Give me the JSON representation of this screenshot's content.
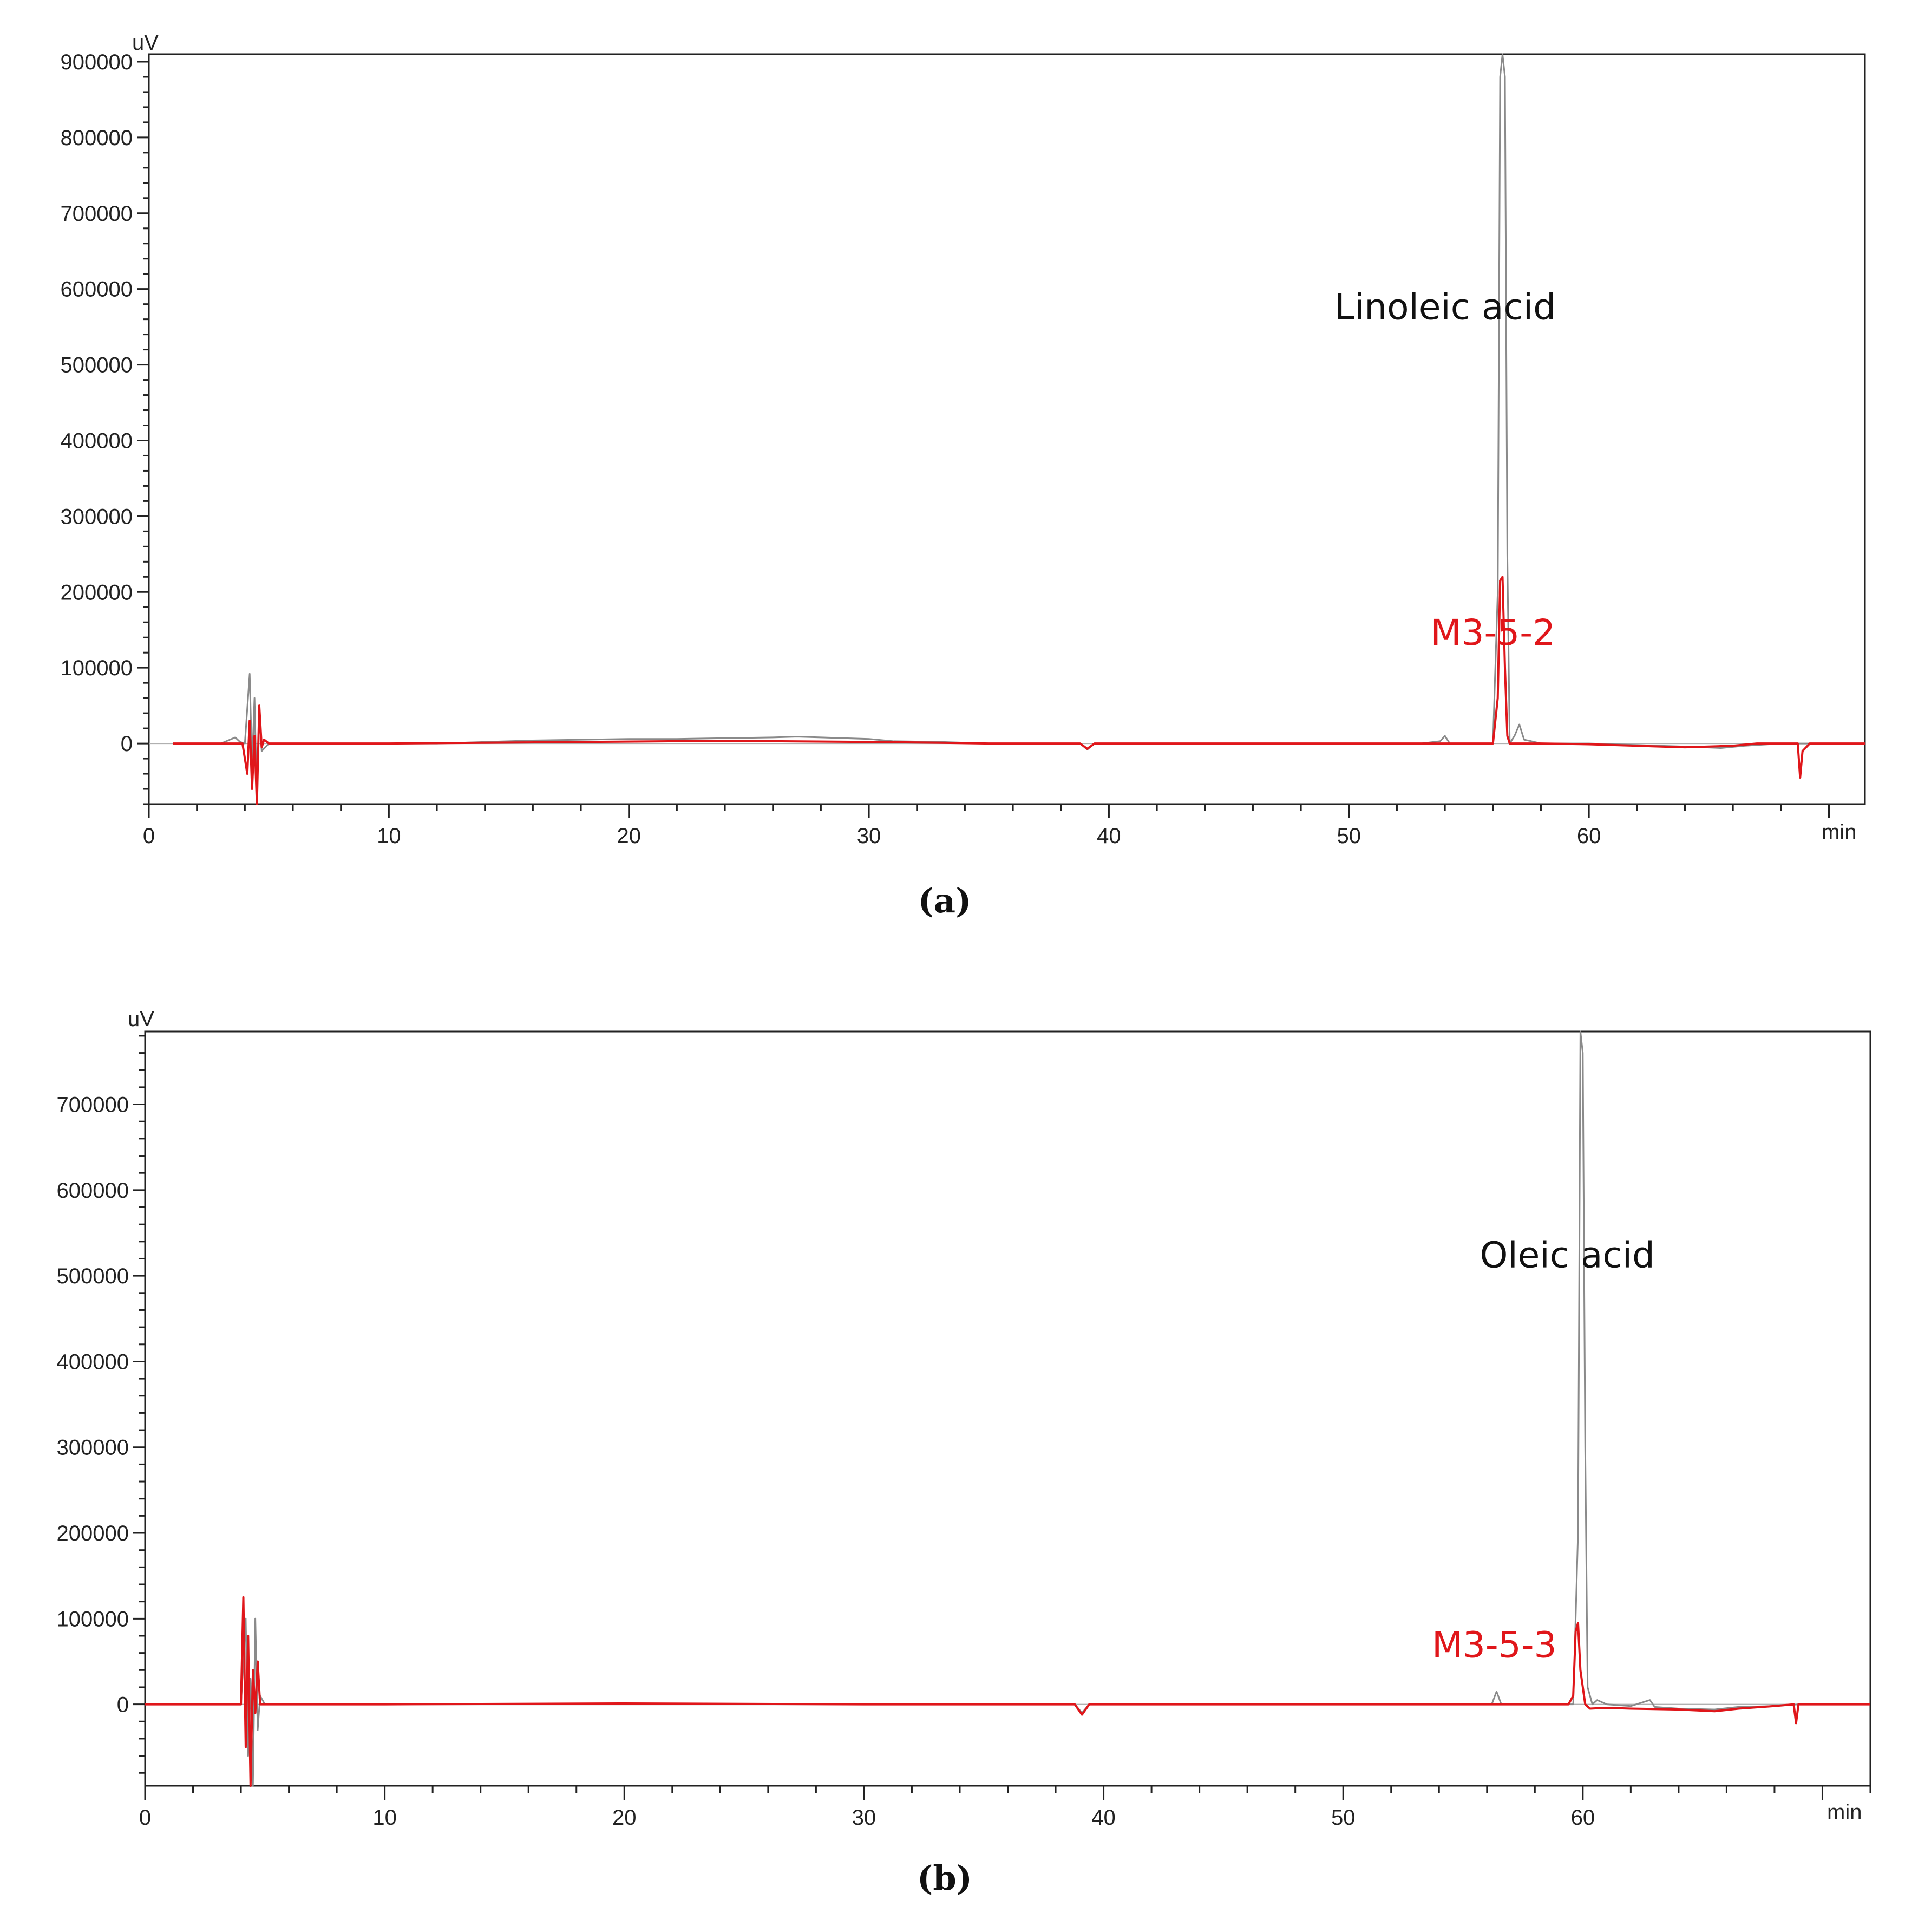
{
  "colors": {
    "standard": "#8a8a8a",
    "sample": "#e0161a",
    "axis": "#222222"
  },
  "chart_data": [
    {
      "type": "line",
      "panel_label": "(a)",
      "x_unit": "min",
      "y_unit": "uV",
      "xlim": [
        0,
        71.5
      ],
      "ylim": [
        -80000,
        910000
      ],
      "x_ticks": [
        0,
        10,
        20,
        30,
        40,
        50,
        60
      ],
      "x_tick_labels": [
        "0",
        "10",
        "20",
        "30",
        "40",
        "50",
        "60"
      ],
      "y_ticks": [
        0,
        100000,
        200000,
        300000,
        400000,
        500000,
        600000,
        700000,
        800000,
        900000
      ],
      "y_tick_labels": [
        "0",
        "100000",
        "200000",
        "300000",
        "400000",
        "500000",
        "600000",
        "700000",
        "800000",
        "900000"
      ],
      "annotations": [
        {
          "text": "Linoleic acid",
          "x": 49.4,
          "y": 560000,
          "color": "#111111"
        },
        {
          "text": "M3-5-2",
          "x": 53.4,
          "y": 130000,
          "color": "#e0161a"
        }
      ],
      "series": [
        {
          "color": "#8a8a8a",
          "x": [
            1,
            3,
            3.6,
            3.8,
            4.0,
            4.2,
            4.3,
            4.4,
            4.5,
            4.6,
            4.7,
            5.0,
            6,
            8,
            10,
            12,
            14,
            16,
            18,
            20,
            22,
            24,
            26,
            27,
            28,
            30,
            31,
            33,
            35,
            37,
            38.8,
            39.1,
            39.4,
            40,
            45,
            50,
            53,
            53.8,
            54.0,
            54.2,
            55,
            56.0,
            56.2,
            56.3,
            56.4,
            56.5,
            56.6,
            56.7,
            56.9,
            57.1,
            57.3,
            57.6,
            58,
            59,
            60,
            62,
            64,
            65.5,
            66.5,
            67,
            68,
            69,
            70,
            71.5
          ],
          "y": [
            0,
            0,
            8000,
            2000,
            0,
            92000,
            -30000,
            60000,
            -70000,
            40000,
            -10000,
            0,
            0,
            0,
            0,
            0,
            2000,
            4000,
            5000,
            6000,
            6000,
            7000,
            8000,
            9000,
            8000,
            6000,
            3000,
            2000,
            0,
            0,
            0,
            -8000,
            0,
            0,
            0,
            0,
            0,
            3000,
            10000,
            0,
            0,
            0,
            200000,
            880000,
            910000,
            880000,
            250000,
            0,
            10000,
            25000,
            5000,
            3000,
            0,
            0,
            0,
            -2000,
            -4000,
            -6000,
            -3000,
            -2000,
            0,
            0,
            0,
            0
          ]
        },
        {
          "color": "#e0161a",
          "x": [
            1,
            3,
            3.9,
            4.1,
            4.2,
            4.3,
            4.4,
            4.5,
            4.6,
            4.7,
            4.8,
            5.0,
            6,
            10,
            14,
            18,
            22,
            26,
            30,
            33,
            35,
            38.8,
            39.1,
            39.4,
            40,
            50,
            56.0,
            56.2,
            56.3,
            56.4,
            56.5,
            56.6,
            56.7,
            57,
            58,
            60,
            62,
            64,
            66,
            67,
            68,
            68.7,
            68.8,
            68.9,
            69.2,
            70,
            71.5
          ],
          "y": [
            0,
            0,
            0,
            -40000,
            30000,
            -60000,
            10000,
            -80000,
            50000,
            -5000,
            5000,
            0,
            0,
            0,
            1000,
            2000,
            3000,
            3000,
            2000,
            1000,
            0,
            0,
            -7000,
            0,
            0,
            0,
            0,
            60000,
            215000,
            220000,
            100000,
            10000,
            0,
            0,
            0,
            -1000,
            -3000,
            -5000,
            -3000,
            0,
            0,
            0,
            -45000,
            -10000,
            0,
            0,
            0
          ]
        }
      ]
    },
    {
      "type": "line",
      "panel_label": "(b)",
      "x_unit": "min",
      "y_unit": "uV",
      "xlim": [
        0,
        72
      ],
      "ylim": [
        -95000,
        785000
      ],
      "x_ticks": [
        0,
        10,
        20,
        30,
        40,
        50,
        60
      ],
      "x_tick_labels": [
        "0",
        "10",
        "20",
        "30",
        "40",
        "50",
        "60"
      ],
      "y_ticks": [
        0,
        100000,
        200000,
        300000,
        400000,
        500000,
        600000,
        700000
      ],
      "y_tick_labels": [
        "0",
        "100000",
        "200000",
        "300000",
        "400000",
        "500000",
        "600000",
        "700000"
      ],
      "annotations": [
        {
          "text": "Oleic acid",
          "x": 55.7,
          "y": 510000,
          "color": "#111111"
        },
        {
          "text": "M3-5-3",
          "x": 53.7,
          "y": 55000,
          "color": "#e0161a"
        }
      ],
      "series": [
        {
          "color": "#8a8a8a",
          "x": [
            0,
            3,
            4.0,
            4.2,
            4.3,
            4.4,
            4.5,
            4.6,
            4.7,
            4.8,
            5.0,
            6,
            10,
            20,
            30,
            38.8,
            39.1,
            39.4,
            40,
            50,
            55,
            56.2,
            56.4,
            56.6,
            57,
            59,
            59.6,
            59.8,
            59.9,
            60.0,
            60.1,
            60.2,
            60.4,
            60.6,
            61,
            62,
            62.8,
            63,
            64,
            65.5,
            66.5,
            68,
            69,
            70,
            72
          ],
          "y": [
            0,
            0,
            0,
            100000,
            -60000,
            30000,
            -95000,
            100000,
            -30000,
            10000,
            0,
            0,
            0,
            0,
            0,
            0,
            -10000,
            0,
            0,
            0,
            0,
            0,
            15000,
            0,
            0,
            0,
            0,
            200000,
            785000,
            760000,
            300000,
            20000,
            0,
            5000,
            0,
            -2000,
            5000,
            -3000,
            -5000,
            -6000,
            -3000,
            -2000,
            0,
            0,
            0
          ]
        },
        {
          "color": "#e0161a",
          "x": [
            0,
            3,
            4.0,
            4.1,
            4.2,
            4.3,
            4.4,
            4.5,
            4.6,
            4.7,
            4.8,
            5.0,
            6,
            10,
            20,
            30,
            38.8,
            39.1,
            39.4,
            40,
            50,
            59.4,
            59.6,
            59.7,
            59.8,
            59.9,
            60.1,
            60.3,
            61,
            62,
            64,
            65.5,
            66.5,
            68,
            68.8,
            68.9,
            69.0,
            70,
            72
          ],
          "y": [
            0,
            0,
            0,
            125000,
            -50000,
            80000,
            -95000,
            40000,
            -10000,
            50000,
            0,
            0,
            0,
            0,
            1000,
            0,
            0,
            -12000,
            0,
            0,
            0,
            0,
            10000,
            85000,
            95000,
            40000,
            0,
            -5000,
            -4000,
            -5000,
            -6000,
            -8000,
            -5000,
            -2000,
            0,
            -22000,
            0,
            0,
            0
          ]
        }
      ]
    }
  ]
}
